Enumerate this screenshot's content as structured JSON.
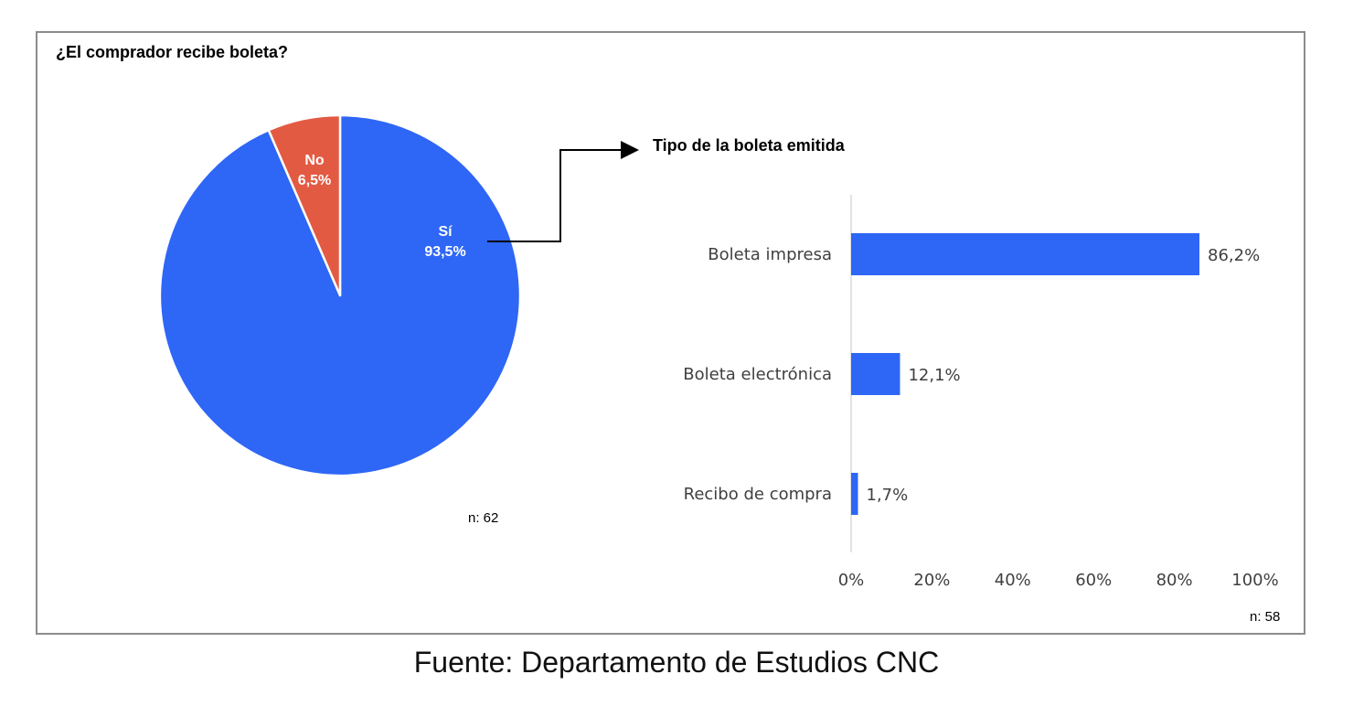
{
  "source": "Fuente: Departamento de Estudios CNC",
  "chart_data": [
    {
      "type": "pie",
      "title": "¿El comprador recibe boleta?",
      "slices": [
        {
          "label": "Sí",
          "value": 93.5,
          "value_label": "93,5%",
          "color": "#2e66f5"
        },
        {
          "label": "No",
          "value": 6.5,
          "value_label": "6,5%",
          "color": "#e35a43"
        }
      ],
      "n_label": "n: 62"
    },
    {
      "type": "bar",
      "orientation": "horizontal",
      "title": "Tipo de la boleta emitida",
      "categories": [
        "Boleta impresa",
        "Boleta electrónica",
        "Recibo de compra"
      ],
      "values": [
        86.2,
        12.1,
        1.7
      ],
      "value_labels": [
        "86,2%",
        "12,1%",
        "1,7%"
      ],
      "xlim": [
        0,
        100
      ],
      "x_ticks": [
        "0%",
        "20%",
        "40%",
        "60%",
        "80%",
        "100%"
      ],
      "color": "#2e66f5",
      "n_label": "n: 58",
      "grid": false
    }
  ]
}
